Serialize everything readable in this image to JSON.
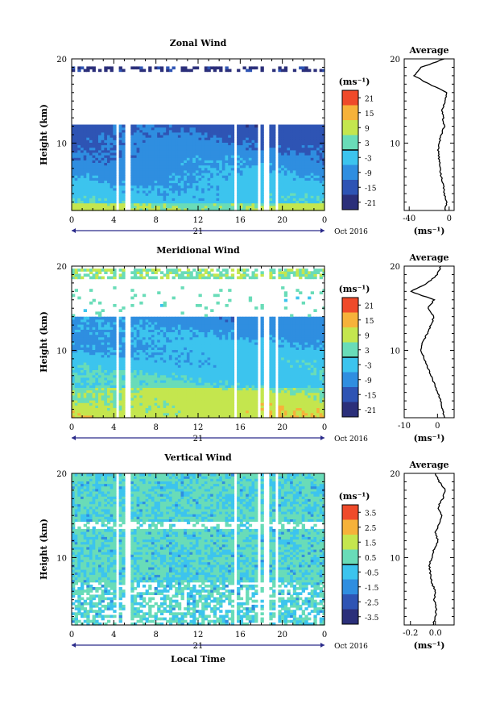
{
  "chart_data": [
    {
      "type": "heatmap",
      "title": "Zonal Wind",
      "ylabel": "Height (km)",
      "ylim": [
        2,
        20
      ],
      "yticks": [
        10,
        20
      ],
      "xlim": [
        0,
        24
      ],
      "xtick_labels": [
        "0",
        "4",
        "8",
        "12",
        "16",
        "20",
        "0"
      ],
      "date_label": "21",
      "month_label": "Oct 2016",
      "colorbar": {
        "unit": "(ms⁻¹)",
        "ticks": [
          "21",
          "15",
          "9",
          "3",
          "-3",
          "-9",
          "-15",
          "-21"
        ],
        "range": [
          -24,
          24
        ]
      },
      "data_gap_hours": [
        4.1,
        5.1,
        15.3,
        17.5,
        18.3,
        19.3
      ],
      "profile": {
        "title": "Average",
        "xlabel": "(ms⁻¹)",
        "xlim": [
          -45,
          5
        ],
        "xticks": [
          "-40",
          "0"
        ],
        "yticks": [
          "10",
          "20"
        ],
        "height_km": [
          2,
          3,
          4,
          5,
          6,
          7,
          8,
          9,
          10,
          11,
          12,
          13,
          14,
          15,
          16,
          17,
          18,
          19,
          20
        ],
        "values": [
          -4,
          -2,
          -5,
          -6,
          -8,
          -9,
          -10,
          -11,
          -10,
          -8,
          -5,
          -6,
          -7,
          -4,
          -2,
          -20,
          -35,
          -28,
          -5
        ]
      }
    },
    {
      "type": "heatmap",
      "title": "Meridional Wind",
      "ylabel": "Height (km)",
      "ylim": [
        2,
        20
      ],
      "yticks": [
        10,
        20
      ],
      "xlim": [
        0,
        24
      ],
      "xtick_labels": [
        "0",
        "4",
        "8",
        "12",
        "16",
        "20",
        "0"
      ],
      "date_label": "21",
      "month_label": "Oct 2016",
      "colorbar": {
        "unit": "(ms⁻¹)",
        "ticks": [
          "21",
          "15",
          "9",
          "3",
          "-3",
          "-9",
          "-15",
          "-21"
        ],
        "range": [
          -24,
          24
        ]
      },
      "data_gap_hours": [
        4.1,
        5.1,
        15.3,
        17.5,
        18.3,
        19.3
      ],
      "profile": {
        "title": "Average",
        "xlabel": "(ms⁻¹)",
        "xlim": [
          -10,
          5
        ],
        "xticks": [
          "-10",
          "0"
        ],
        "yticks": [
          "10",
          "20"
        ],
        "height_km": [
          2,
          3,
          4,
          5,
          6,
          7,
          8,
          9,
          10,
          11,
          12,
          13,
          14,
          15,
          16,
          17,
          18,
          19,
          20
        ],
        "values": [
          2,
          1.5,
          1,
          0,
          -1,
          -2,
          -3,
          -4,
          -5,
          -4.5,
          -3,
          -2,
          -1,
          -3,
          -1,
          -8,
          -3,
          0,
          1
        ]
      }
    },
    {
      "type": "heatmap",
      "title": "Vertical Wind",
      "ylabel": "Height (km)",
      "xlabel": "Local Time",
      "ylim": [
        2,
        20
      ],
      "yticks": [
        10,
        20
      ],
      "xlim": [
        0,
        24
      ],
      "xtick_labels": [
        "0",
        "4",
        "8",
        "12",
        "16",
        "20",
        "0"
      ],
      "date_label": "21",
      "month_label": "Oct 2016",
      "colorbar": {
        "unit": "(ms⁻¹)",
        "ticks": [
          "3.5",
          "2.5",
          "1.5",
          "0.5",
          "-0.5",
          "-1.5",
          "-2.5",
          "-3.5"
        ],
        "range": [
          -4,
          4
        ]
      },
      "data_gap_hours": [
        4.1,
        5.1,
        15.3,
        17.5,
        18.3,
        19.3
      ],
      "profile": {
        "title": "Average",
        "xlabel": "(ms⁻¹)",
        "xlim": [
          -0.25,
          0.15
        ],
        "xticks": [
          "-0.2",
          "0.0"
        ],
        "yticks": [
          "10",
          "20"
        ],
        "height_km": [
          2,
          3,
          4,
          5,
          6,
          7,
          8,
          9,
          10,
          11,
          12,
          13,
          14,
          15,
          16,
          17,
          18,
          19,
          20
        ],
        "values": [
          -0.02,
          0.0,
          0.01,
          -0.01,
          0.0,
          -0.03,
          -0.04,
          -0.05,
          -0.03,
          -0.01,
          0.02,
          0.0,
          0.03,
          0.05,
          0.02,
          0.06,
          0.08,
          0.03,
          0.0
        ]
      }
    }
  ]
}
